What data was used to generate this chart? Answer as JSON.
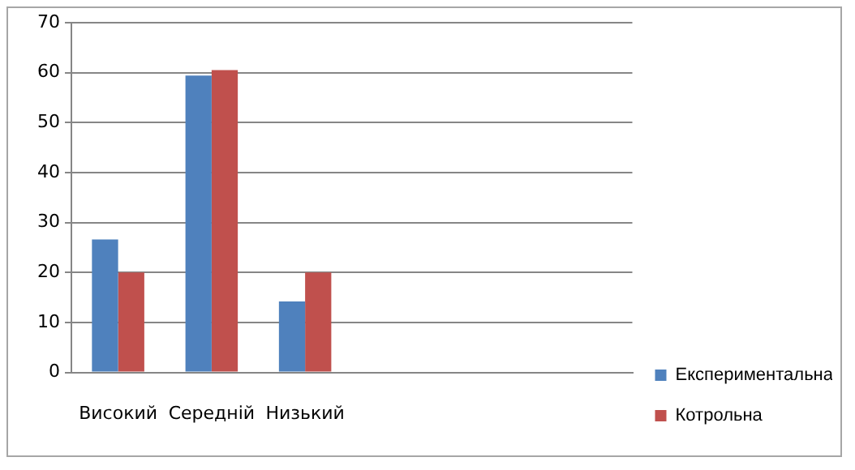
{
  "chart_data": {
    "type": "bar",
    "categories": [
      "Високий",
      "Середній",
      "Низький",
      null,
      null,
      null
    ],
    "series": [
      {
        "name": "Експериментальна",
        "color": "#4f81bd",
        "values": [
          26.6,
          59.4,
          14.2,
          null,
          null,
          null
        ]
      },
      {
        "name": "Котрольна",
        "color": "#c0504d",
        "values": [
          20,
          60.5,
          20,
          null,
          null,
          null
        ]
      }
    ],
    "ylim": [
      0,
      70
    ],
    "yticks": [
      0,
      10,
      20,
      30,
      40,
      50,
      60,
      70
    ],
    "grid": "y",
    "legend": "bottom right"
  }
}
